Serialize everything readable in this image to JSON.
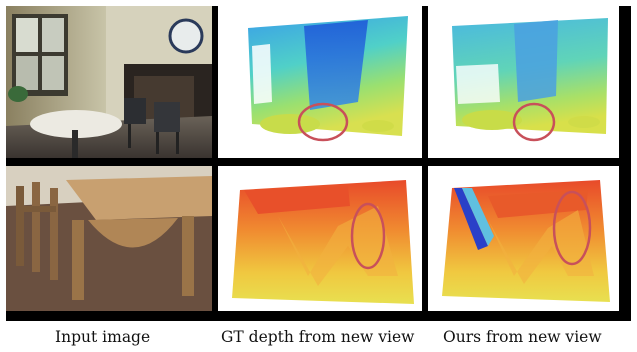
{
  "captions": {
    "input": "Input image",
    "gt": "GT depth from new view",
    "ours": "Ours from new view"
  },
  "colors": {
    "frame": "#000000",
    "highlight_ellipse": "#c8505a",
    "depth_near": "#e8462a",
    "depth_mid": "#f0d040",
    "depth_far": "#2a5cd8"
  },
  "panels": [
    {
      "row": 1,
      "column": "input",
      "content": "photo-room-table-chairs"
    },
    {
      "row": 1,
      "column": "gt",
      "content": "depth-map"
    },
    {
      "row": 1,
      "column": "ours",
      "content": "depth-map"
    },
    {
      "row": 2,
      "column": "input",
      "content": "photo-wooden-table"
    },
    {
      "row": 2,
      "column": "gt",
      "content": "depth-map"
    },
    {
      "row": 2,
      "column": "ours",
      "content": "depth-map"
    }
  ]
}
